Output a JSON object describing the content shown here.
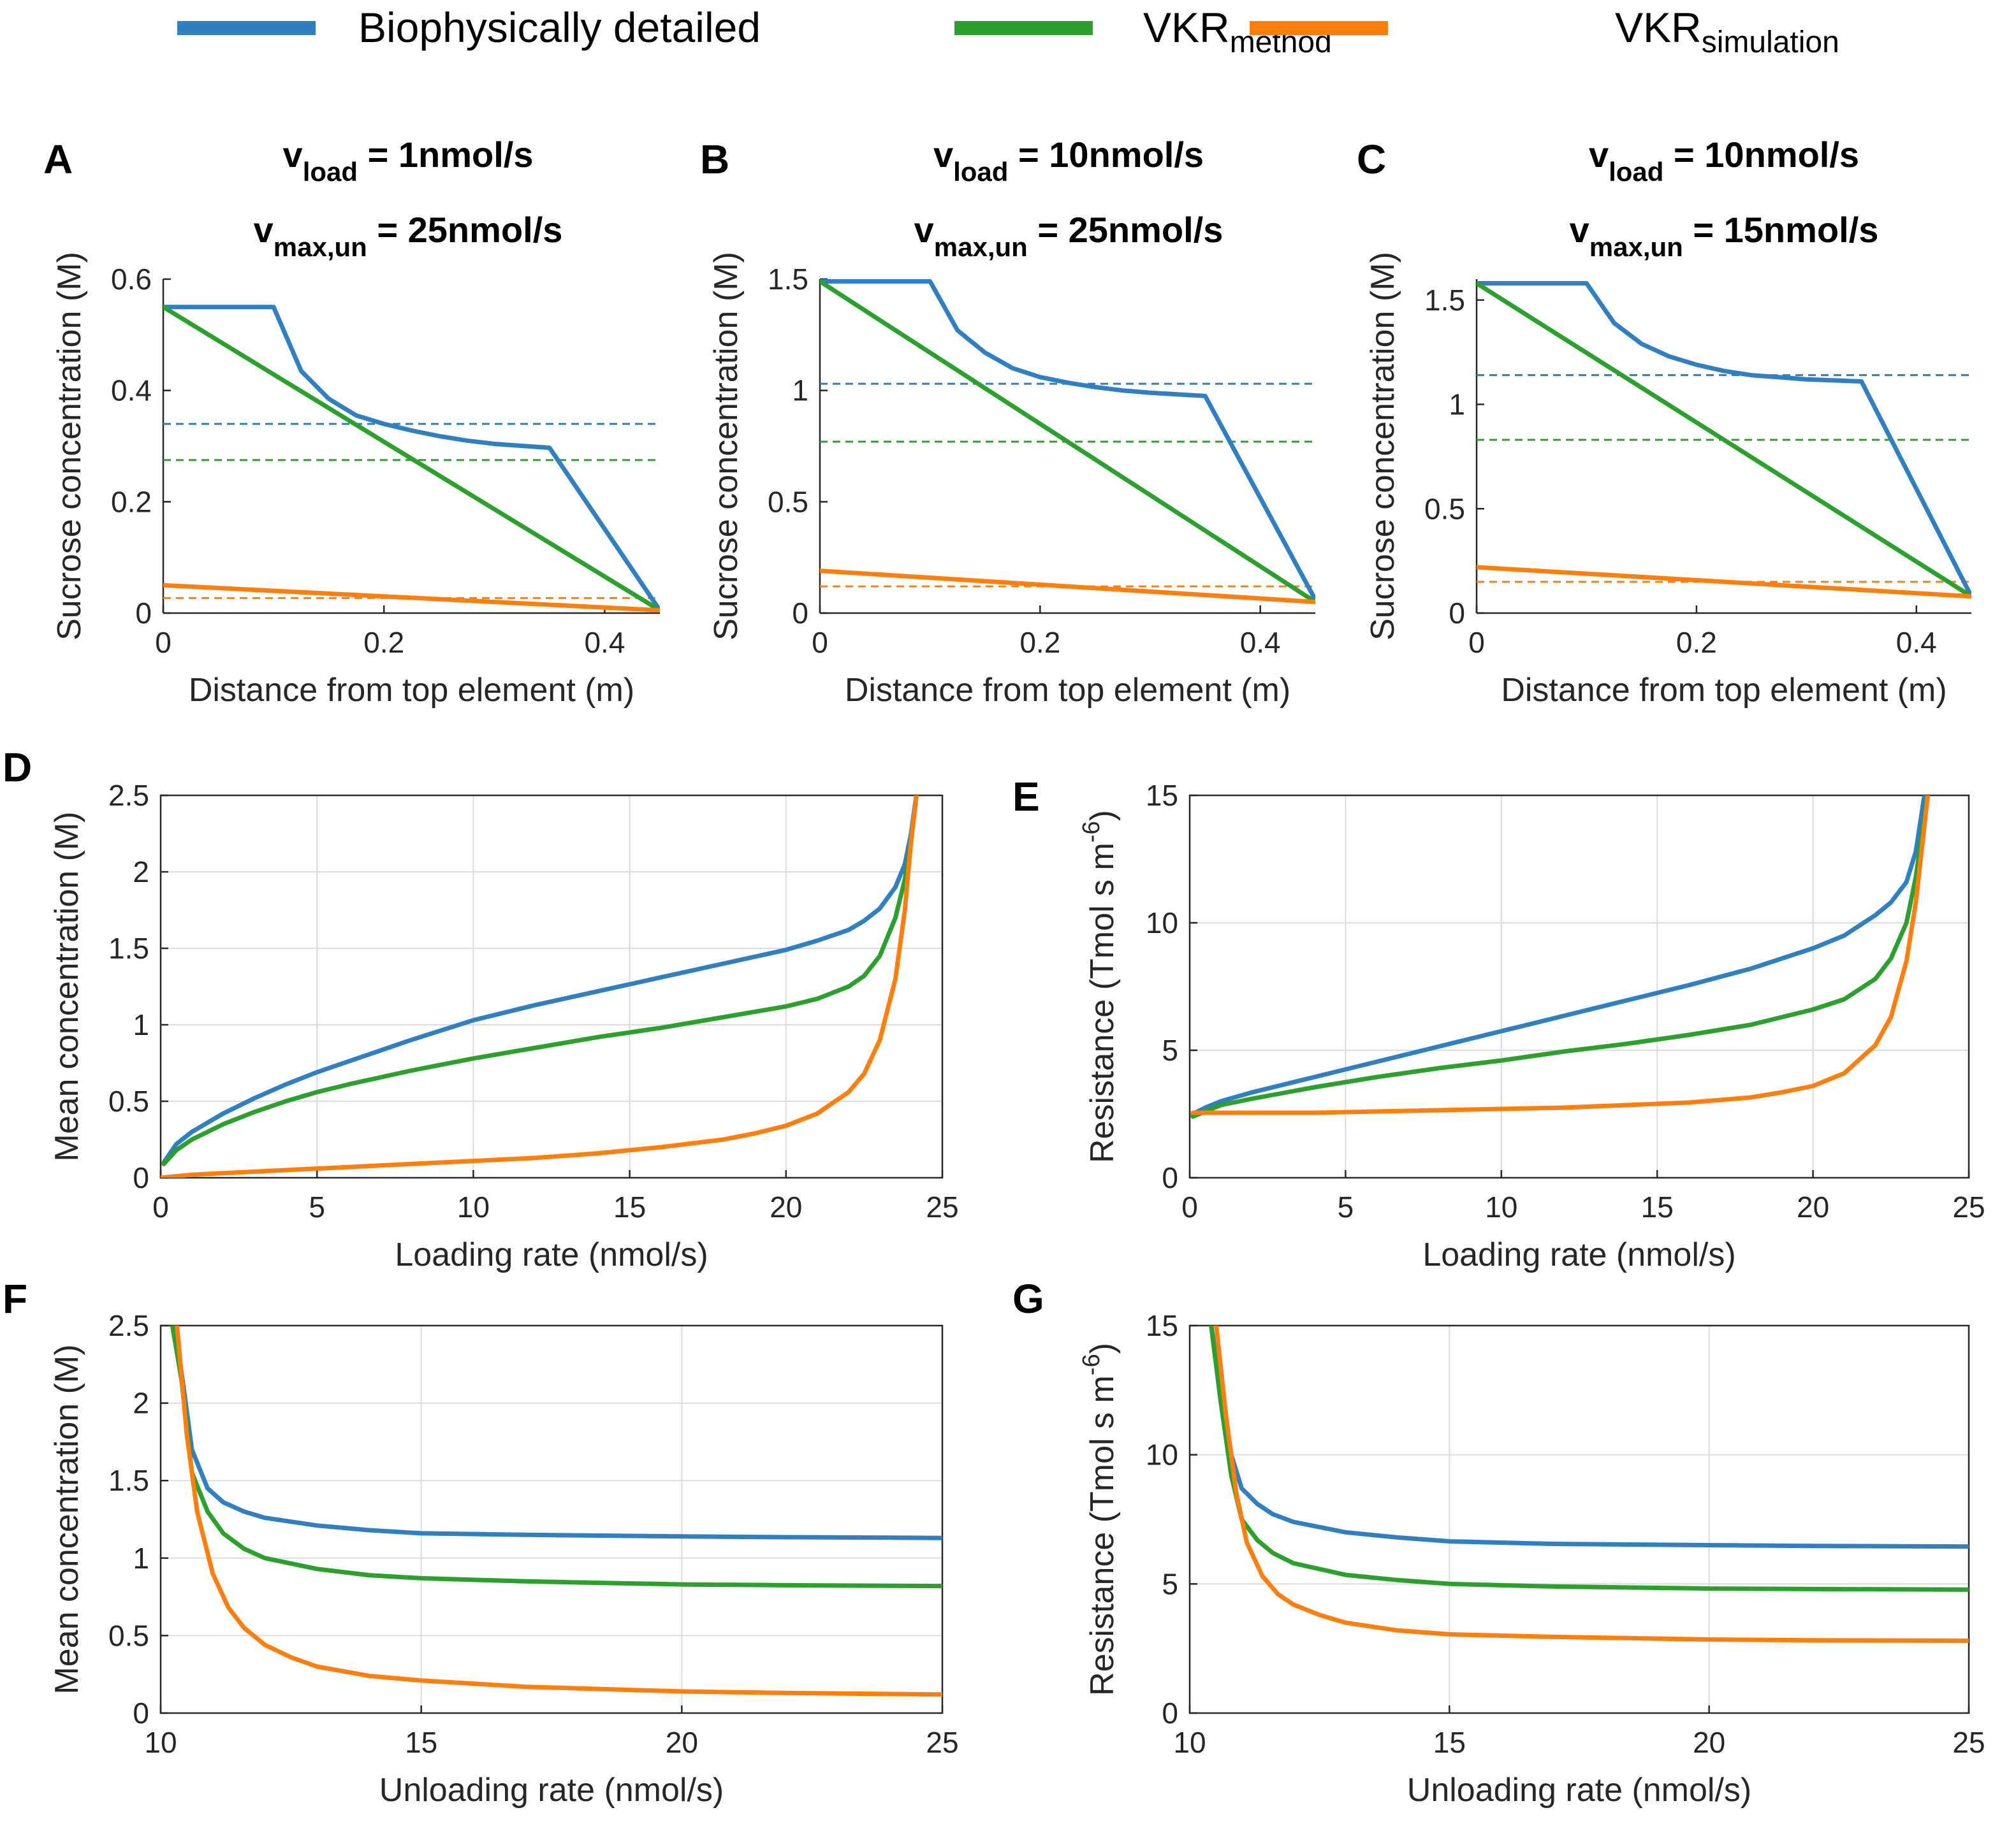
{
  "colors": {
    "biophysical": "#2f7fc1",
    "vkr_method": "#2ca02c",
    "vkr_simulation": "#ff7f0e",
    "axis": "#262626",
    "grid": "#dcdcdc"
  },
  "legend": {
    "items": [
      {
        "key": "biophysical",
        "text": "Biophysically detailed",
        "sub": ""
      },
      {
        "key": "vkr_method",
        "text": "VKR",
        "sub": "method"
      },
      {
        "key": "vkr_simulation",
        "text": "VKR",
        "sub": "simulation"
      }
    ]
  },
  "chart_data": [
    {
      "id": "A",
      "panel_label": "A",
      "type": "line",
      "title_lines": [
        {
          "main": "v",
          "sub": "load",
          "rest": " = 1nmol/s"
        },
        {
          "main": "v",
          "sub": "max,un",
          "rest": " = 25nmol/s"
        }
      ],
      "xlabel": "Distance from top element (m)",
      "ylabel": "Sucrose concentration (M)",
      "xlim": [
        0,
        0.45
      ],
      "ylim": [
        0,
        0.6
      ],
      "xticks": [
        0,
        0.2,
        0.4
      ],
      "xtick_labels": [
        "0",
        "0.2",
        "0.4"
      ],
      "yticks": [
        0,
        0.2,
        0.4,
        0.6
      ],
      "ytick_labels": [
        "0",
        "0.2",
        "0.4",
        "0.6"
      ],
      "grid": false,
      "series": [
        {
          "name": "Biophysically detailed",
          "key": "biophysical",
          "x": [
            0,
            0.1,
            0.125,
            0.15,
            0.175,
            0.2,
            0.225,
            0.25,
            0.275,
            0.3,
            0.35,
            0.45
          ],
          "y": [
            0.55,
            0.55,
            0.435,
            0.385,
            0.355,
            0.34,
            0.328,
            0.318,
            0.31,
            0.304,
            0.297,
            0.005
          ]
        },
        {
          "name": "VKR method",
          "key": "vkr_method",
          "x": [
            0,
            0.45
          ],
          "y": [
            0.55,
            0.005
          ]
        },
        {
          "name": "VKR simulation",
          "key": "vkr_simulation",
          "x": [
            0,
            0.45
          ],
          "y": [
            0.05,
            0.005
          ]
        }
      ],
      "hlines": [
        {
          "key": "biophysical",
          "y": 0.34
        },
        {
          "key": "vkr_method",
          "y": 0.275
        },
        {
          "key": "vkr_simulation",
          "y": 0.027
        }
      ]
    },
    {
      "id": "B",
      "panel_label": "B",
      "type": "line",
      "title_lines": [
        {
          "main": "v",
          "sub": "load",
          "rest": " = 10nmol/s"
        },
        {
          "main": "v",
          "sub": "max,un",
          "rest": " = 25nmol/s"
        }
      ],
      "xlabel": "Distance from top element (m)",
      "ylabel": "Sucrose concentration (M)",
      "xlim": [
        0,
        0.45
      ],
      "ylim": [
        0,
        1.5
      ],
      "xticks": [
        0,
        0.2,
        0.4
      ],
      "xtick_labels": [
        "0",
        "0.2",
        "0.4"
      ],
      "yticks": [
        0,
        0.5,
        1,
        1.5
      ],
      "ytick_labels": [
        "0",
        "0.5",
        "1",
        "1.5"
      ],
      "grid": false,
      "series": [
        {
          "name": "Biophysically detailed",
          "key": "biophysical",
          "x": [
            0,
            0.1,
            0.125,
            0.15,
            0.175,
            0.2,
            0.225,
            0.25,
            0.275,
            0.3,
            0.35,
            0.45
          ],
          "y": [
            1.49,
            1.49,
            1.27,
            1.17,
            1.1,
            1.06,
            1.035,
            1.015,
            1.0,
            0.99,
            0.975,
            0.06
          ]
        },
        {
          "name": "VKR method",
          "key": "vkr_method",
          "x": [
            0,
            0.45
          ],
          "y": [
            1.49,
            0.05
          ]
        },
        {
          "name": "VKR simulation",
          "key": "vkr_simulation",
          "x": [
            0,
            0.45
          ],
          "y": [
            0.19,
            0.05
          ]
        }
      ],
      "hlines": [
        {
          "key": "biophysical",
          "y": 1.03
        },
        {
          "key": "vkr_method",
          "y": 0.77
        },
        {
          "key": "vkr_simulation",
          "y": 0.12
        }
      ]
    },
    {
      "id": "C",
      "panel_label": "C",
      "type": "line",
      "title_lines": [
        {
          "main": "v",
          "sub": "load",
          "rest": " = 10nmol/s"
        },
        {
          "main": "v",
          "sub": "max,un",
          "rest": " = 15nmol/s"
        }
      ],
      "xlabel": "Distance from top element (m)",
      "ylabel": "Sucrose concentration (M)",
      "xlim": [
        0,
        0.45
      ],
      "ylim": [
        0,
        1.6
      ],
      "xticks": [
        0,
        0.2,
        0.4
      ],
      "xtick_labels": [
        "0",
        "0.2",
        "0.4"
      ],
      "yticks": [
        0,
        0.5,
        1,
        1.5
      ],
      "ytick_labels": [
        "0",
        "0.5",
        "1",
        "1.5"
      ],
      "grid": false,
      "series": [
        {
          "name": "Biophysically detailed",
          "key": "biophysical",
          "x": [
            0,
            0.1,
            0.125,
            0.15,
            0.175,
            0.2,
            0.225,
            0.25,
            0.275,
            0.3,
            0.35,
            0.45
          ],
          "y": [
            1.58,
            1.58,
            1.39,
            1.29,
            1.23,
            1.19,
            1.16,
            1.14,
            1.13,
            1.12,
            1.11,
            0.08
          ]
        },
        {
          "name": "VKR method",
          "key": "vkr_method",
          "x": [
            0,
            0.45
          ],
          "y": [
            1.58,
            0.08
          ]
        },
        {
          "name": "VKR simulation",
          "key": "vkr_simulation",
          "x": [
            0,
            0.45
          ],
          "y": [
            0.22,
            0.08
          ]
        }
      ],
      "hlines": [
        {
          "key": "biophysical",
          "y": 1.14
        },
        {
          "key": "vkr_method",
          "y": 0.83
        },
        {
          "key": "vkr_simulation",
          "y": 0.15
        }
      ]
    },
    {
      "id": "D",
      "panel_label": "D",
      "type": "line",
      "xlabel": "Loading rate (nmol/s)",
      "ylabel": "Mean concentration (M)",
      "xlim": [
        0,
        25
      ],
      "ylim": [
        0,
        2.5
      ],
      "xticks": [
        0,
        5,
        10,
        15,
        20,
        25
      ],
      "xtick_labels": [
        "0",
        "5",
        "10",
        "15",
        "20",
        "25"
      ],
      "yticks": [
        0,
        0.5,
        1,
        1.5,
        2,
        2.5
      ],
      "ytick_labels": [
        "0",
        "0.5",
        "1",
        "1.5",
        "2",
        "2.5"
      ],
      "grid": true,
      "series": [
        {
          "name": "Biophysically detailed",
          "key": "biophysical",
          "x": [
            0.1,
            0.5,
            1,
            2,
            3,
            4,
            5,
            6,
            8,
            10,
            12,
            14,
            16,
            18,
            20,
            21,
            22,
            22.5,
            23,
            23.5,
            23.8,
            24,
            24.2
          ],
          "y": [
            0.1,
            0.22,
            0.3,
            0.42,
            0.52,
            0.61,
            0.69,
            0.76,
            0.9,
            1.03,
            1.13,
            1.22,
            1.31,
            1.4,
            1.49,
            1.55,
            1.62,
            1.68,
            1.76,
            1.9,
            2.05,
            2.25,
            2.55
          ]
        },
        {
          "name": "VKR method",
          "key": "vkr_method",
          "x": [
            0.1,
            0.5,
            1,
            2,
            3,
            4,
            5,
            6,
            8,
            10,
            12,
            14,
            16,
            18,
            20,
            21,
            22,
            22.5,
            23,
            23.5,
            23.8,
            24,
            24.2
          ],
          "y": [
            0.09,
            0.18,
            0.25,
            0.35,
            0.43,
            0.5,
            0.56,
            0.61,
            0.7,
            0.78,
            0.85,
            0.92,
            0.98,
            1.05,
            1.12,
            1.17,
            1.25,
            1.32,
            1.45,
            1.7,
            1.95,
            2.2,
            2.55
          ]
        },
        {
          "name": "VKR simulation",
          "key": "vkr_simulation",
          "x": [
            0,
            1,
            2,
            4,
            6,
            8,
            10,
            12,
            14,
            16,
            18,
            19,
            20,
            21,
            22,
            22.5,
            23,
            23.5,
            23.8,
            24,
            24.2
          ],
          "y": [
            0.0,
            0.02,
            0.03,
            0.05,
            0.07,
            0.09,
            0.11,
            0.13,
            0.16,
            0.2,
            0.25,
            0.29,
            0.34,
            0.42,
            0.56,
            0.68,
            0.9,
            1.3,
            1.75,
            2.2,
            2.55
          ]
        }
      ]
    },
    {
      "id": "E",
      "panel_label": "E",
      "type": "line",
      "xlabel": "Loading rate (nmol/s)",
      "ylabel": "Resistance (Tmol s m",
      "ylabel_sup": "-6",
      "ylabel_end": ")",
      "xlim": [
        0,
        25
      ],
      "ylim": [
        0,
        15
      ],
      "xticks": [
        0,
        5,
        10,
        15,
        20,
        25
      ],
      "xtick_labels": [
        "0",
        "5",
        "10",
        "15",
        "20",
        "25"
      ],
      "yticks": [
        0,
        5,
        10,
        15
      ],
      "ytick_labels": [
        "0",
        "5",
        "10",
        "15"
      ],
      "grid": true,
      "series": [
        {
          "name": "Biophysically detailed",
          "key": "biophysical",
          "x": [
            0.1,
            0.5,
            1,
            2,
            4,
            6,
            8,
            10,
            12,
            14,
            16,
            18,
            20,
            21,
            22,
            22.5,
            23,
            23.3,
            23.6
          ],
          "y": [
            2.5,
            2.75,
            3.0,
            3.35,
            3.95,
            4.55,
            5.15,
            5.75,
            6.35,
            6.95,
            7.55,
            8.2,
            9.0,
            9.5,
            10.3,
            10.8,
            11.6,
            12.8,
            15.2
          ]
        },
        {
          "name": "VKR method",
          "key": "vkr_method",
          "x": [
            0.1,
            0.5,
            1,
            2,
            4,
            6,
            8,
            10,
            12,
            14,
            16,
            18,
            20,
            21,
            22,
            22.5,
            23,
            23.3,
            23.5,
            23.7
          ],
          "y": [
            2.4,
            2.6,
            2.85,
            3.1,
            3.55,
            3.95,
            4.3,
            4.6,
            4.95,
            5.25,
            5.6,
            6.0,
            6.6,
            7.0,
            7.8,
            8.6,
            10.0,
            11.8,
            13.5,
            15.2
          ]
        },
        {
          "name": "VKR simulation",
          "key": "vkr_simulation",
          "x": [
            0.1,
            2,
            4,
            6,
            8,
            10,
            12,
            14,
            16,
            18,
            19,
            20,
            21,
            22,
            22.5,
            23,
            23.3,
            23.5,
            23.7
          ],
          "y": [
            2.55,
            2.55,
            2.55,
            2.6,
            2.65,
            2.7,
            2.75,
            2.85,
            2.95,
            3.15,
            3.35,
            3.6,
            4.1,
            5.2,
            6.3,
            8.5,
            10.8,
            13.0,
            15.2
          ]
        }
      ]
    },
    {
      "id": "F",
      "panel_label": "F",
      "type": "line",
      "xlabel": "Unloading rate (nmol/s)",
      "ylabel": "Mean concentration (M)",
      "xlim": [
        10,
        25
      ],
      "ylim": [
        0,
        2.5
      ],
      "xticks": [
        10,
        15,
        20,
        25
      ],
      "xtick_labels": [
        "10",
        "15",
        "20",
        "25"
      ],
      "yticks": [
        0,
        0.5,
        1,
        1.5,
        2,
        2.5
      ],
      "ytick_labels": [
        "0",
        "0.5",
        "1",
        "1.5",
        "2",
        "2.5"
      ],
      "grid": true,
      "series": [
        {
          "name": "Biophysically detailed",
          "key": "biophysical",
          "x": [
            10.2,
            10.4,
            10.6,
            10.9,
            11.2,
            11.6,
            12,
            13,
            14,
            15,
            17,
            20,
            22,
            25
          ],
          "y": [
            2.55,
            2.2,
            1.7,
            1.45,
            1.36,
            1.3,
            1.26,
            1.21,
            1.18,
            1.16,
            1.15,
            1.14,
            1.135,
            1.13
          ]
        },
        {
          "name": "VKR method",
          "key": "vkr_method",
          "x": [
            10.2,
            10.4,
            10.6,
            10.9,
            11.2,
            11.6,
            12,
            13,
            14,
            15,
            17,
            20,
            22,
            25
          ],
          "y": [
            2.55,
            2.15,
            1.55,
            1.3,
            1.16,
            1.06,
            1.0,
            0.93,
            0.89,
            0.87,
            0.85,
            0.83,
            0.825,
            0.82
          ]
        },
        {
          "name": "VKR simulation",
          "key": "vkr_simulation",
          "x": [
            10.3,
            10.5,
            10.7,
            11,
            11.3,
            11.6,
            12,
            12.5,
            13,
            14,
            15,
            17,
            20,
            22,
            25
          ],
          "y": [
            2.55,
            1.8,
            1.3,
            0.9,
            0.68,
            0.55,
            0.44,
            0.36,
            0.3,
            0.24,
            0.21,
            0.17,
            0.14,
            0.13,
            0.12
          ]
        }
      ]
    },
    {
      "id": "G",
      "panel_label": "G",
      "type": "line",
      "xlabel": "Unloading rate (nmol/s)",
      "ylabel": "Resistance (Tmol s m",
      "ylabel_sup": "-6",
      "ylabel_end": ")",
      "xlim": [
        10,
        25
      ],
      "ylim": [
        0,
        15
      ],
      "xticks": [
        10,
        15,
        20,
        25
      ],
      "xtick_labels": [
        "10",
        "15",
        "20",
        "25"
      ],
      "yticks": [
        0,
        5,
        10,
        15
      ],
      "ytick_labels": [
        "0",
        "5",
        "10",
        "15"
      ],
      "grid": true,
      "series": [
        {
          "name": "Biophysically detailed",
          "key": "biophysical",
          "x": [
            10.4,
            10.6,
            10.8,
            11,
            11.3,
            11.6,
            12,
            13,
            14,
            15,
            17,
            20,
            22,
            25
          ],
          "y": [
            15.2,
            12.5,
            10.0,
            8.7,
            8.1,
            7.7,
            7.4,
            7.0,
            6.8,
            6.65,
            6.55,
            6.5,
            6.47,
            6.45
          ]
        },
        {
          "name": "VKR method",
          "key": "vkr_method",
          "x": [
            10.4,
            10.6,
            10.8,
            11,
            11.3,
            11.6,
            12,
            13,
            14,
            15,
            17,
            20,
            22,
            25
          ],
          "y": [
            15.2,
            12.0,
            9.2,
            7.5,
            6.7,
            6.2,
            5.8,
            5.35,
            5.15,
            5.0,
            4.9,
            4.82,
            4.8,
            4.78
          ]
        },
        {
          "name": "VKR simulation",
          "key": "vkr_simulation",
          "x": [
            10.5,
            10.7,
            10.9,
            11.1,
            11.4,
            11.7,
            12,
            12.5,
            13,
            14,
            15,
            17,
            20,
            22,
            25
          ],
          "y": [
            15.2,
            11.5,
            8.5,
            6.6,
            5.3,
            4.6,
            4.2,
            3.8,
            3.5,
            3.2,
            3.05,
            2.95,
            2.85,
            2.82,
            2.8
          ]
        }
      ]
    }
  ]
}
